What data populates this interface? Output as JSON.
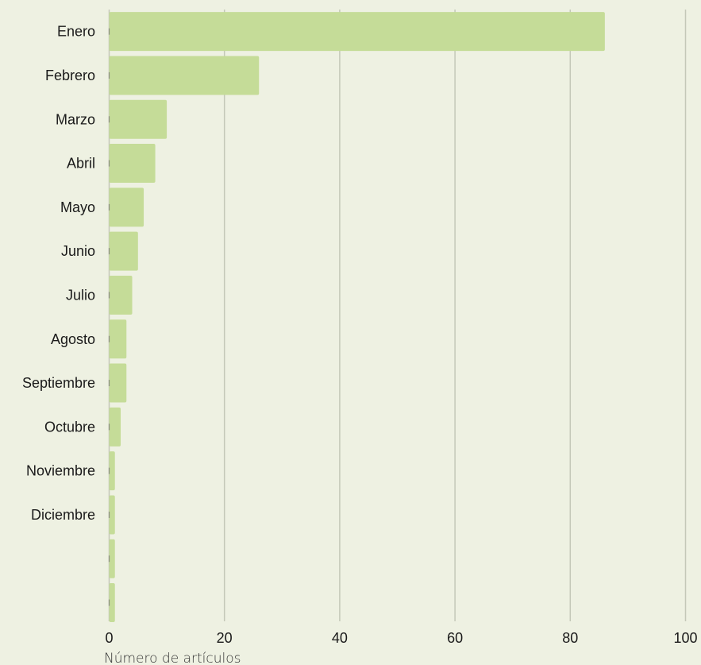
{
  "chart_data": {
    "type": "bar",
    "orientation": "horizontal",
    "categories": [
      "Enero",
      "Febrero",
      "Marzo",
      "Abril",
      "Mayo",
      "Junio",
      "Julio",
      "Agosto",
      "Septiembre",
      "Octubre",
      "Noviembre",
      "Diciembre",
      "",
      ""
    ],
    "values": [
      86,
      26,
      10,
      8,
      6,
      5,
      4,
      3,
      3,
      2,
      1,
      1,
      1,
      1
    ],
    "xlabel": "Número de artículos",
    "ylabel": "",
    "xlim": [
      0,
      100
    ],
    "xticks": [
      0,
      20,
      40,
      60,
      80,
      100
    ],
    "grid": "vertical",
    "colors": {
      "bar": "#c5dc98",
      "background": "#eef1e2",
      "grid": "#c4c8b8"
    }
  }
}
